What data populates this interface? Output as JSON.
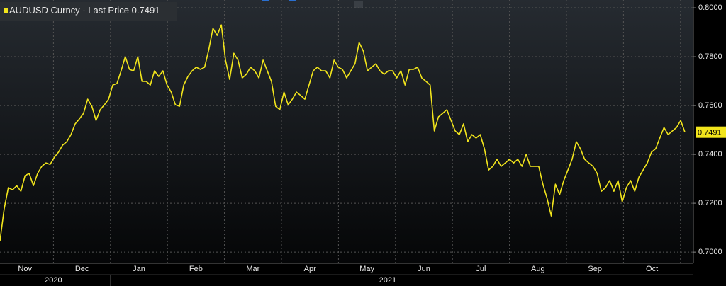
{
  "chart_data": {
    "type": "line",
    "title": "AUDUSD Curncy - Last Price",
    "months": [
      "Nov",
      "Dec",
      "Jan",
      "Feb",
      "Mar",
      "Apr",
      "May",
      "Jun",
      "Jul",
      "Aug",
      "Sep",
      "Oct"
    ],
    "years": [
      "2020",
      "2021"
    ],
    "series": [
      {
        "name": "AUDUSD Curncy",
        "color": "#f2e51c",
        "values": [
          0.7046,
          0.7177,
          0.7264,
          0.7255,
          0.7272,
          0.7249,
          0.7313,
          0.7322,
          0.7272,
          0.7322,
          0.7351,
          0.7365,
          0.7359,
          0.7388,
          0.7409,
          0.7438,
          0.7452,
          0.7481,
          0.7525,
          0.7545,
          0.7568,
          0.7626,
          0.7597,
          0.7539,
          0.7583,
          0.7603,
          0.7626,
          0.7684,
          0.769,
          0.7742,
          0.78,
          0.7748,
          0.7742,
          0.78,
          0.7699,
          0.7699,
          0.7684,
          0.7742,
          0.7719,
          0.7742,
          0.7684,
          0.7655,
          0.7603,
          0.7597,
          0.7684,
          0.7719,
          0.7742,
          0.7757,
          0.7748,
          0.7757,
          0.7829,
          0.7916,
          0.7887,
          0.793,
          0.7786,
          0.7707,
          0.7814,
          0.7786,
          0.7713,
          0.7728,
          0.7757,
          0.7742,
          0.7713,
          0.7786,
          0.7742,
          0.7699,
          0.7597,
          0.7583,
          0.7655,
          0.7603,
          0.7626,
          0.7655,
          0.7641,
          0.7626,
          0.7684,
          0.7742,
          0.7757,
          0.7742,
          0.7742,
          0.7713,
          0.7786,
          0.7757,
          0.7748,
          0.7713,
          0.7742,
          0.7771,
          0.7858,
          0.7823,
          0.7742,
          0.7757,
          0.7771,
          0.7742,
          0.7728,
          0.7742,
          0.7742,
          0.7713,
          0.7742,
          0.7684,
          0.7748,
          0.7748,
          0.7757,
          0.7713,
          0.7699,
          0.7684,
          0.7496,
          0.7554,
          0.7568,
          0.7583,
          0.7539,
          0.7496,
          0.7481,
          0.7525,
          0.7452,
          0.7481,
          0.7467,
          0.7481,
          0.7423,
          0.7336,
          0.7351,
          0.738,
          0.7351,
          0.7365,
          0.738,
          0.7365,
          0.738,
          0.7351,
          0.74,
          0.7351,
          0.7351,
          0.7351,
          0.7278,
          0.722,
          0.7148,
          0.7278,
          0.7235,
          0.7293,
          0.7336,
          0.738,
          0.7452,
          0.7423,
          0.738,
          0.7365,
          0.7351,
          0.7322,
          0.7249,
          0.7264,
          0.7293,
          0.7249,
          0.7293,
          0.7206,
          0.7264,
          0.7293,
          0.7249,
          0.7307,
          0.7336,
          0.7365,
          0.7409,
          0.7423,
          0.7467,
          0.751,
          0.7481,
          0.7496,
          0.751,
          0.7539,
          0.7491
        ]
      }
    ],
    "ylim": [
      0.6954,
      0.8032
    ],
    "yticks": [
      {
        "value": 0.7,
        "label": "0.7000"
      },
      {
        "value": 0.72,
        "label": "0.7200"
      },
      {
        "value": 0.74,
        "label": "0.7400"
      },
      {
        "value": 0.76,
        "label": "0.7600"
      },
      {
        "value": 0.78,
        "label": "0.7800"
      },
      {
        "value": 0.8,
        "label": "0.8000"
      }
    ],
    "grid": true
  }
}
